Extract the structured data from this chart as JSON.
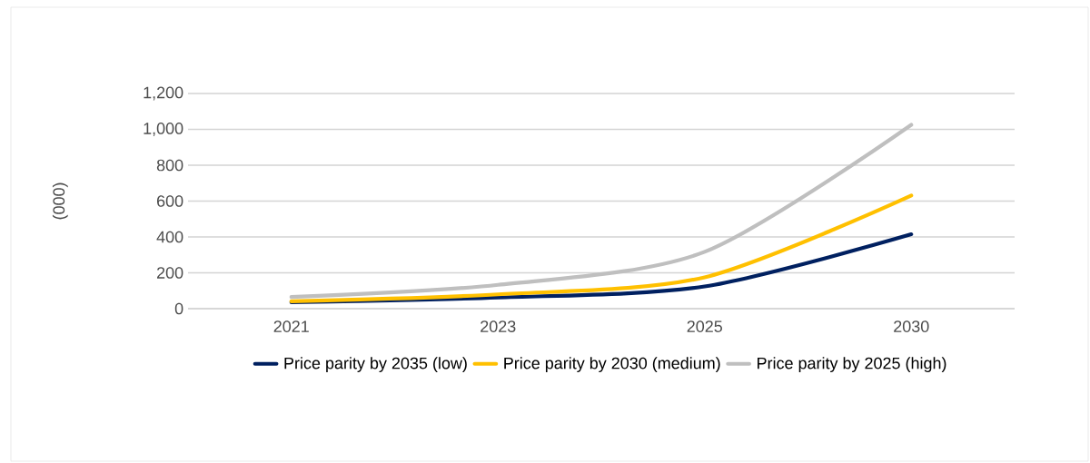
{
  "chart_data": {
    "type": "line",
    "ylabel": "(000)",
    "categories": [
      "2021",
      "2023",
      "2025",
      "2030"
    ],
    "series": [
      {
        "name": "Price parity by 2035 (low)",
        "color": "#002060",
        "values": [
          36,
          62,
          124,
          415
        ]
      },
      {
        "name": "Price parity by 2030 (medium)",
        "color": "#ffc000",
        "values": [
          41,
          80,
          175,
          631
        ]
      },
      {
        "name": "Price parity by 2025 (high)",
        "color": "#bfbfbf",
        "values": [
          65,
          133,
          317,
          1025
        ]
      }
    ],
    "ylim": [
      0,
      1200
    ],
    "yticks": [
      {
        "value": 0,
        "label": "0"
      },
      {
        "value": 200,
        "label": "200"
      },
      {
        "value": 400,
        "label": "400"
      },
      {
        "value": 600,
        "label": "600"
      },
      {
        "value": 800,
        "label": "800"
      },
      {
        "value": 1000,
        "label": "1,000"
      },
      {
        "value": 1200,
        "label": "1,200"
      }
    ],
    "grid": "y",
    "legend": "bottom",
    "marker": "none",
    "line_style": "solid"
  }
}
